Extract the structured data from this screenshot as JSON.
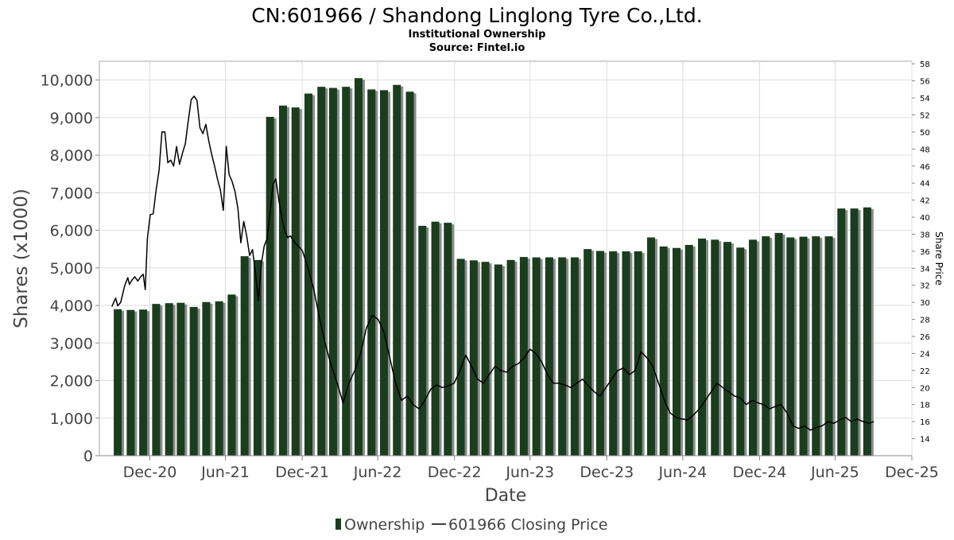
{
  "chart_data": {
    "type": "bar",
    "title": "CN:601966 / Shandong Linglong Tyre Co.,Ltd.",
    "subtitle": "Institutional Ownership",
    "source": "Source: Fintel.io",
    "xlabel": "Date",
    "ylabel": "Shares (x1000)",
    "y2label": "Share Price",
    "x_range": [
      "2020-09-01",
      "2025-12-31"
    ],
    "x_ticks": [
      {
        "label": "Dec-20",
        "date": "2020-12-31"
      },
      {
        "label": "Jun-21",
        "date": "2021-06-30"
      },
      {
        "label": "Dec-21",
        "date": "2021-12-31"
      },
      {
        "label": "Jun-22",
        "date": "2022-06-30"
      },
      {
        "label": "Dec-22",
        "date": "2022-12-31"
      },
      {
        "label": "Jun-23",
        "date": "2023-06-30"
      },
      {
        "label": "Dec-23",
        "date": "2023-12-31"
      },
      {
        "label": "Jun-24",
        "date": "2024-06-30"
      },
      {
        "label": "Dec-24",
        "date": "2024-12-31"
      },
      {
        "label": "Jun-25",
        "date": "2025-06-30"
      },
      {
        "label": "Dec-25",
        "date": "2025-12-31"
      }
    ],
    "ylim": [
      0,
      10500
    ],
    "y_ticks": [
      {
        "label": "0",
        "value": 0
      },
      {
        "label": "1,000",
        "value": 1000
      },
      {
        "label": "2,000",
        "value": 2000
      },
      {
        "label": "3,000",
        "value": 3000
      },
      {
        "label": "4,000",
        "value": 4000
      },
      {
        "label": "5,000",
        "value": 5000
      },
      {
        "label": "6,000",
        "value": 6000
      },
      {
        "label": "7,000",
        "value": 7000
      },
      {
        "label": "8,000",
        "value": 8000
      },
      {
        "label": "9,000",
        "value": 9000
      },
      {
        "label": "10,000",
        "value": 10000
      }
    ],
    "y2lim": [
      12,
      58.3
    ],
    "y2_ticks": [
      "14",
      "16",
      "18",
      "20",
      "22",
      "24",
      "26",
      "28",
      "30",
      "32",
      "34",
      "36",
      "38",
      "40",
      "42",
      "44",
      "46",
      "48",
      "50",
      "52",
      "54",
      "56",
      "58"
    ],
    "grid": true,
    "legend_position": "bottom",
    "colors": {
      "bar": "#1a3d1e",
      "bar_shadow": "#8c8c8c",
      "line": "#000000",
      "grid": "#dedede"
    },
    "series": [
      {
        "name": "Ownership",
        "kind": "bar",
        "x": [
          "2020-10-15",
          "2020-11-15",
          "2020-12-15",
          "2021-01-15",
          "2021-02-15",
          "2021-03-15",
          "2021-04-15",
          "2021-05-15",
          "2021-06-15",
          "2021-07-15",
          "2021-08-15",
          "2021-09-15",
          "2021-10-15",
          "2021-11-15",
          "2021-12-15",
          "2022-01-15",
          "2022-02-15",
          "2022-03-15",
          "2022-04-15",
          "2022-05-15",
          "2022-06-15",
          "2022-07-15",
          "2022-08-15",
          "2022-09-15",
          "2022-10-15",
          "2022-11-15",
          "2022-12-15",
          "2023-01-15",
          "2023-02-15",
          "2023-03-15",
          "2023-04-15",
          "2023-05-15",
          "2023-06-15",
          "2023-07-15",
          "2023-08-15",
          "2023-09-15",
          "2023-10-15",
          "2023-11-15",
          "2023-12-15",
          "2024-01-15",
          "2024-02-15",
          "2024-03-15",
          "2024-04-15",
          "2024-05-15",
          "2024-06-15",
          "2024-07-15",
          "2024-08-15",
          "2024-09-15",
          "2024-10-15",
          "2024-11-15",
          "2024-12-15",
          "2025-01-15",
          "2025-02-15",
          "2025-03-15",
          "2025-04-15",
          "2025-05-15",
          "2025-06-15",
          "2025-07-15",
          "2025-08-15",
          "2025-09-15"
        ],
        "values": [
          3900,
          3880,
          3890,
          4040,
          4060,
          4070,
          3960,
          4090,
          4110,
          4290,
          5310,
          5210,
          9020,
          9320,
          9270,
          9640,
          9820,
          9790,
          9820,
          10050,
          9750,
          9730,
          9870,
          9690,
          6120,
          6230,
          6200,
          5240,
          5200,
          5160,
          5090,
          5210,
          5290,
          5280,
          5280,
          5280,
          5280,
          5500,
          5450,
          5440,
          5440,
          5440,
          5810,
          5570,
          5530,
          5610,
          5780,
          5750,
          5690,
          5540,
          5750,
          5840,
          5930,
          5810,
          5830,
          5840,
          5840,
          6580,
          6580,
          6610
        ]
      },
      {
        "name": "601966 Closing Price",
        "kind": "line",
        "axis": "right",
        "x": [
          "2020-10-01",
          "2020-10-10",
          "2020-10-15",
          "2020-10-22",
          "2020-11-01",
          "2020-11-08",
          "2020-11-12",
          "2020-11-18",
          "2020-11-25",
          "2020-12-02",
          "2020-12-09",
          "2020-12-15",
          "2020-12-20",
          "2020-12-25",
          "2021-01-01",
          "2021-01-08",
          "2021-01-15",
          "2021-01-22",
          "2021-01-29",
          "2021-02-05",
          "2021-02-12",
          "2021-02-19",
          "2021-02-26",
          "2021-03-05",
          "2021-03-12",
          "2021-03-19",
          "2021-03-26",
          "2021-04-02",
          "2021-04-09",
          "2021-04-16",
          "2021-04-23",
          "2021-04-30",
          "2021-05-07",
          "2021-05-14",
          "2021-05-21",
          "2021-05-28",
          "2021-06-04",
          "2021-06-11",
          "2021-06-18",
          "2021-06-25",
          "2021-07-02",
          "2021-07-09",
          "2021-07-16",
          "2021-07-23",
          "2021-07-30",
          "2021-08-06",
          "2021-08-13",
          "2021-08-20",
          "2021-08-27",
          "2021-09-03",
          "2021-09-10",
          "2021-09-17",
          "2021-09-24",
          "2021-10-01",
          "2021-10-08",
          "2021-10-15",
          "2021-10-22",
          "2021-10-29",
          "2021-11-05",
          "2021-11-12",
          "2021-11-19",
          "2021-11-26",
          "2021-12-03",
          "2021-12-10",
          "2021-12-17",
          "2021-12-24",
          "2022-01-01",
          "2022-01-14",
          "2022-01-28",
          "2022-02-11",
          "2022-02-25",
          "2022-03-11",
          "2022-03-25",
          "2022-04-08",
          "2022-04-22",
          "2022-05-06",
          "2022-05-20",
          "2022-06-03",
          "2022-06-17",
          "2022-07-01",
          "2022-07-15",
          "2022-07-29",
          "2022-08-12",
          "2022-08-26",
          "2022-09-09",
          "2022-09-23",
          "2022-10-07",
          "2022-10-21",
          "2022-11-04",
          "2022-11-18",
          "2022-12-02",
          "2022-12-16",
          "2022-12-30",
          "2023-01-13",
          "2023-01-27",
          "2023-02-10",
          "2023-02-24",
          "2023-03-10",
          "2023-03-24",
          "2023-04-07",
          "2023-04-21",
          "2023-05-05",
          "2023-05-19",
          "2023-06-02",
          "2023-06-16",
          "2023-06-30",
          "2023-07-14",
          "2023-07-28",
          "2023-08-11",
          "2023-08-25",
          "2023-09-08",
          "2023-09-22",
          "2023-10-06",
          "2023-10-20",
          "2023-11-03",
          "2023-11-17",
          "2023-12-01",
          "2023-12-15",
          "2023-12-29",
          "2024-01-12",
          "2024-01-26",
          "2024-02-09",
          "2024-02-23",
          "2024-03-08",
          "2024-03-22",
          "2024-04-05",
          "2024-04-19",
          "2024-05-03",
          "2024-05-17",
          "2024-05-31",
          "2024-06-14",
          "2024-06-28",
          "2024-07-12",
          "2024-07-26",
          "2024-08-09",
          "2024-08-23",
          "2024-09-06",
          "2024-09-20",
          "2024-10-04",
          "2024-10-18",
          "2024-11-01",
          "2024-11-15",
          "2024-11-29",
          "2024-12-13",
          "2024-12-27",
          "2025-01-10",
          "2025-01-24",
          "2025-02-07",
          "2025-02-21",
          "2025-03-07",
          "2025-03-21",
          "2025-04-04",
          "2025-04-18",
          "2025-05-02",
          "2025-05-16",
          "2025-05-30",
          "2025-06-13",
          "2025-06-27",
          "2025-07-11",
          "2025-07-25",
          "2025-08-08",
          "2025-08-22",
          "2025-09-05",
          "2025-09-19",
          "2025-10-01"
        ],
        "values": [
          29.5,
          30.5,
          29.6,
          30.0,
          32.0,
          32.9,
          32.1,
          32.6,
          33.0,
          32.5,
          33.0,
          33.3,
          31.5,
          37.5,
          40.3,
          40.4,
          43.2,
          45.5,
          50.0,
          50.0,
          46.4,
          46.7,
          46.0,
          48.3,
          46.2,
          47.5,
          48.6,
          51.3,
          53.8,
          54.2,
          53.7,
          50.5,
          49.8,
          50.9,
          49.0,
          47.4,
          46.0,
          44.5,
          43.2,
          40.8,
          48.3,
          45.0,
          44.2,
          43.0,
          41.0,
          37.0,
          39.5,
          37.8,
          35.5,
          36.2,
          33.5,
          30.2,
          34.5,
          36.6,
          37.5,
          40.5,
          43.8,
          44.5,
          42.0,
          40.0,
          38.4,
          37.6,
          37.8,
          37.2,
          36.8,
          36.5,
          36.0,
          34.0,
          31.5,
          28.0,
          25.0,
          22.5,
          20.5,
          18.2,
          20.5,
          22.0,
          24.0,
          27.0,
          28.5,
          28.0,
          26.5,
          23.5,
          20.5,
          18.5,
          19.0,
          18.0,
          17.5,
          18.5,
          19.8,
          20.3,
          20.0,
          20.2,
          20.5,
          22.0,
          23.8,
          22.5,
          21.0,
          20.5,
          21.5,
          22.5,
          22.0,
          21.8,
          22.5,
          22.8,
          23.5,
          24.5,
          24.0,
          23.0,
          21.5,
          20.5,
          20.5,
          20.3,
          20.0,
          20.5,
          21.0,
          20.2,
          19.5,
          19.0,
          20.0,
          21.0,
          22.0,
          22.3,
          21.5,
          22.0,
          24.2,
          23.5,
          22.5,
          20.5,
          18.5,
          17.0,
          16.5,
          16.3,
          16.2,
          16.8,
          17.5,
          18.5,
          19.5,
          20.5,
          20.0,
          19.5,
          19.0,
          18.8,
          18.0,
          18.5,
          18.2,
          18.0,
          17.5,
          17.8,
          18.0,
          17.0,
          15.5,
          15.2,
          15.5,
          15.0,
          15.3,
          15.5,
          16.0,
          15.8,
          16.2,
          16.5,
          16.0,
          16.3,
          16.0,
          15.8,
          16.0
        ]
      }
    ]
  }
}
